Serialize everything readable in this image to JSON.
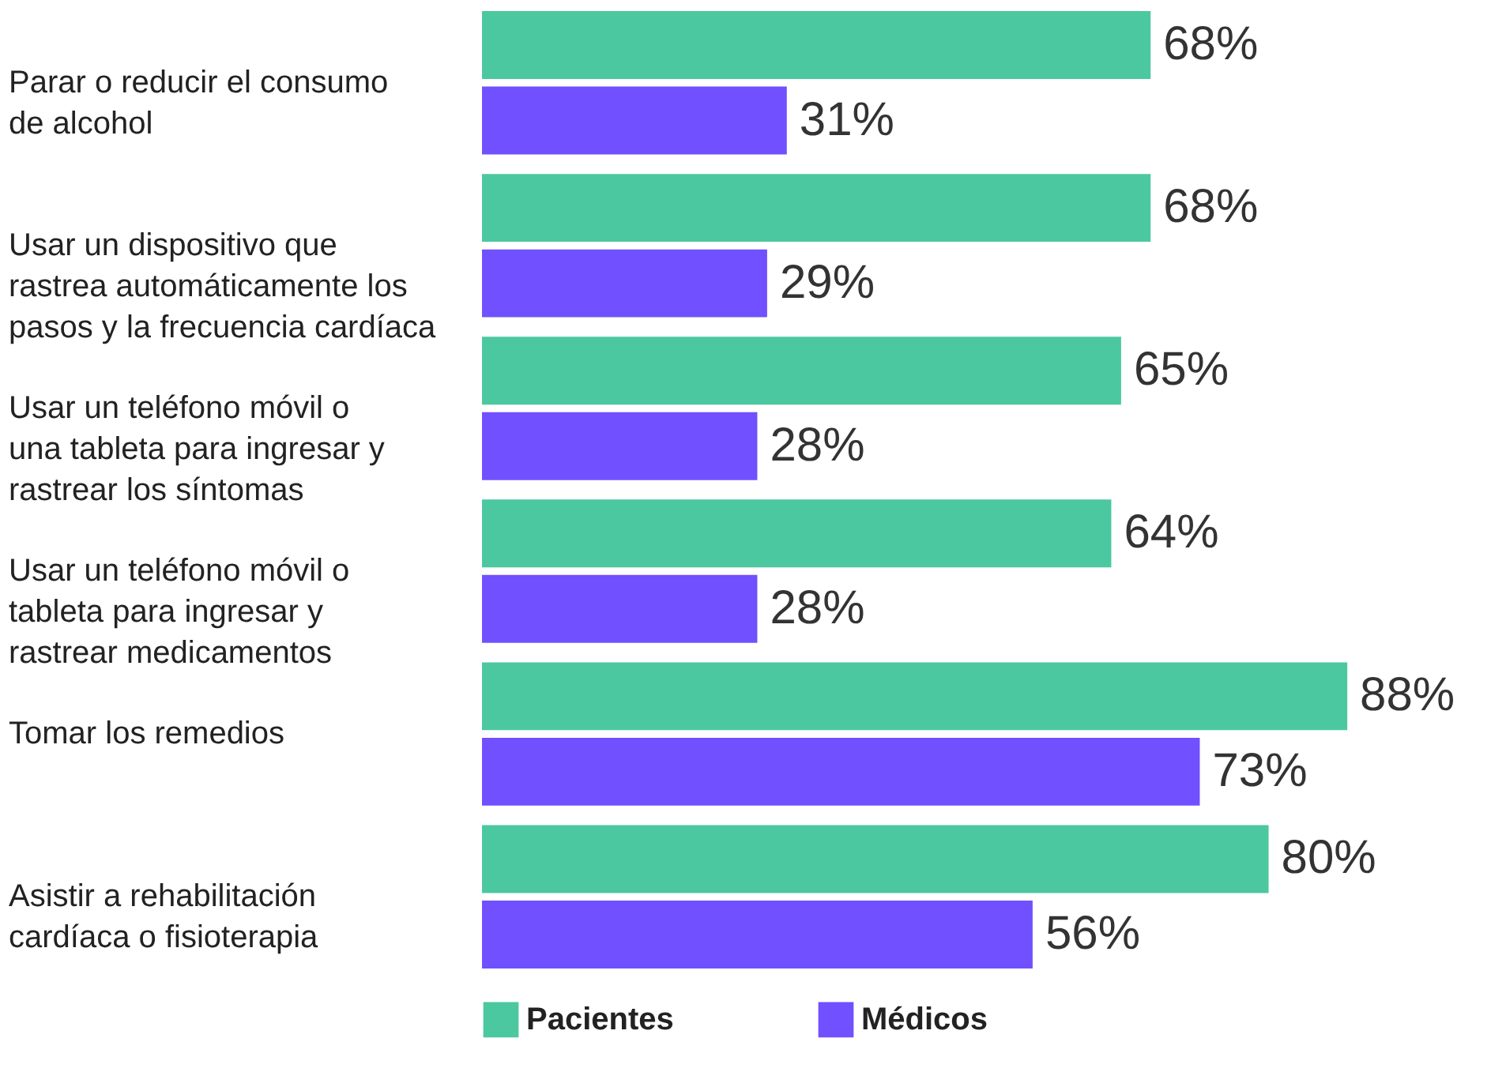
{
  "chart_data": {
    "type": "bar",
    "orientation": "horizontal",
    "categories": [
      "Parar o reducir el consumo\nde alcohol",
      "Usar un dispositivo que\nrastrea automáticamente los\npasos y la frecuencia cardíaca",
      "Usar un teléfono móvil o\nuna tableta para ingresar y\nrastrear los síntomas",
      "Usar un teléfono móvil o\ntableta para ingresar y\nrastrear medicamentos",
      "Tomar los remedios",
      "Asistir a rehabilitación\ncardíaca o fisioterapia"
    ],
    "series": [
      {
        "name": "Pacientes",
        "color": "#4cc8a0",
        "values": [
          68,
          68,
          65,
          64,
          88,
          80
        ],
        "value_labels": [
          "68%",
          "68%",
          "65%",
          "64%",
          "88%",
          "80%"
        ]
      },
      {
        "name": "Médicos",
        "color": "#7050ff",
        "values": [
          31,
          29,
          28,
          28,
          73,
          56
        ],
        "value_labels": [
          "31%",
          "29%",
          "28%",
          "28%",
          "73%",
          "56%"
        ]
      }
    ],
    "legend": "bottom",
    "grid": false
  }
}
